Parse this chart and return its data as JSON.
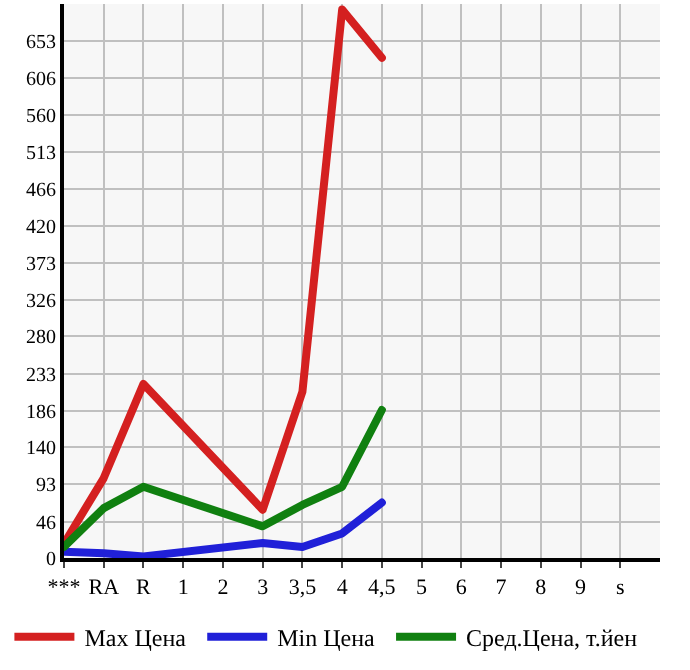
{
  "chart_data": {
    "type": "line",
    "categories": [
      "***",
      "RA",
      "R",
      "1",
      "2",
      "3",
      "3,5",
      "4",
      "4,5",
      "5",
      "6",
      "7",
      "8",
      "9",
      "s"
    ],
    "series": [
      {
        "name": "Max Цена",
        "color": "#d42020",
        "values": [
          18,
          101,
          220,
          null,
          null,
          61,
          210,
          693,
          632,
          null,
          null,
          null,
          null,
          null,
          null
        ]
      },
      {
        "name": "Min Цена",
        "color": "#2020d8",
        "values": [
          8,
          6,
          2,
          null,
          null,
          19,
          14,
          31,
          70,
          null,
          null,
          null,
          null,
          null,
          null
        ]
      },
      {
        "name": "Сред.Цена, т.йен",
        "color": "#108010",
        "values": [
          14,
          63,
          90,
          null,
          null,
          40,
          67,
          90,
          187,
          null,
          null,
          null,
          null,
          null,
          null
        ]
      }
    ],
    "ylim": [
      0,
      700
    ],
    "yticks": [
      0,
      46,
      93,
      140,
      186,
      233,
      280,
      326,
      373,
      420,
      466,
      513,
      560,
      606,
      653
    ],
    "grid": true,
    "legend": "bottom",
    "marker": "none",
    "line_style": "solid"
  }
}
